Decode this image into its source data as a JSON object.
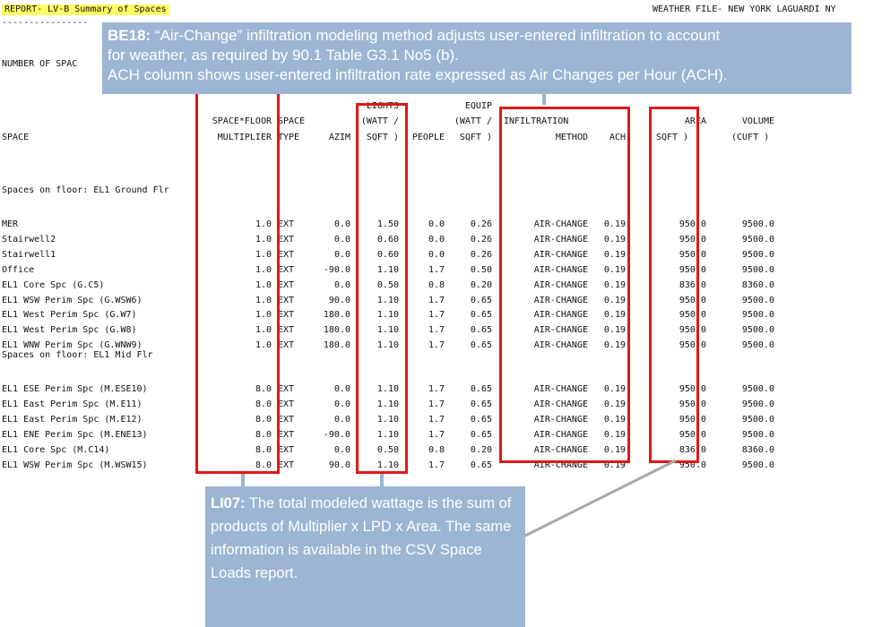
{
  "header": {
    "report_title": "REPORT- LV-B Summary of Spaces",
    "dashes": "----------------",
    "weather_file": "WEATHER FILE- NEW YORK LAGUARDI NY",
    "number_of_spaces_label": "NUMBER OF SPAC"
  },
  "columns": {
    "space": "SPACE",
    "mult_1": "SPACE*FLOOR",
    "mult_2": "MULTIPLIER",
    "type_1": "SPACE",
    "type_2": "TYPE",
    "azim": "AZIM",
    "lights_1": "LIGHTS",
    "lights_2": "(WATT /",
    "lights_3": "SQFT )",
    "people": "PEOPLE",
    "equip_1": "EQUIP",
    "equip_2": "(WATT /",
    "equip_3": "SQFT )",
    "infil_1": "INFILTRATION",
    "infil_2": "METHOD",
    "ach": "ACH",
    "area_1": "AREA",
    "area_2": "SQFT )",
    "volume_1": "VOLUME",
    "volume_2": "(CUFT )"
  },
  "floors": [
    {
      "label": "Spaces on floor: EL1 Ground Flr",
      "rows": [
        {
          "space": "MER",
          "mult": "1.0",
          "type": "EXT",
          "azim": "0.0",
          "lights": "1.50",
          "people": "0.0",
          "equip": "0.26",
          "method": "AIR-CHANGE",
          "ach": "0.19",
          "area": "950.0",
          "volume": "9500.0"
        },
        {
          "space": "Stairwell2",
          "mult": "1.0",
          "type": "EXT",
          "azim": "0.0",
          "lights": "0.60",
          "people": "0.0",
          "equip": "0.26",
          "method": "AIR-CHANGE",
          "ach": "0.19",
          "area": "950.0",
          "volume": "9500.0"
        },
        {
          "space": "Stairwell1",
          "mult": "1.0",
          "type": "EXT",
          "azim": "0.0",
          "lights": "0.60",
          "people": "0.0",
          "equip": "0.26",
          "method": "AIR-CHANGE",
          "ach": "0.19",
          "area": "950.0",
          "volume": "9500.0"
        },
        {
          "space": "Office",
          "mult": "1.0",
          "type": "EXT",
          "azim": "-90.0",
          "lights": "1.10",
          "people": "1.7",
          "equip": "0.50",
          "method": "AIR-CHANGE",
          "ach": "0.19",
          "area": "950.0",
          "volume": "9500.0"
        },
        {
          "space": "EL1 Core Spc (G.C5)",
          "mult": "1.0",
          "type": "EXT",
          "azim": "0.0",
          "lights": "0.50",
          "people": "0.8",
          "equip": "0.20",
          "method": "AIR-CHANGE",
          "ach": "0.19",
          "area": "836.0",
          "volume": "8360.0"
        },
        {
          "space": "EL1 WSW Perim Spc (G.WSW6)",
          "mult": "1.0",
          "type": "EXT",
          "azim": "90.0",
          "lights": "1.10",
          "people": "1.7",
          "equip": "0.65",
          "method": "AIR-CHANGE",
          "ach": "0.19",
          "area": "950.0",
          "volume": "9500.0"
        },
        {
          "space": "EL1 West Perim Spc (G.W7)",
          "mult": "1.0",
          "type": "EXT",
          "azim": "180.0",
          "lights": "1.10",
          "people": "1.7",
          "equip": "0.65",
          "method": "AIR-CHANGE",
          "ach": "0.19",
          "area": "950.0",
          "volume": "9500.0"
        },
        {
          "space": "EL1 West Perim Spc (G.W8)",
          "mult": "1.0",
          "type": "EXT",
          "azim": "180.0",
          "lights": "1.10",
          "people": "1.7",
          "equip": "0.65",
          "method": "AIR-CHANGE",
          "ach": "0.19",
          "area": "950.0",
          "volume": "9500.0"
        },
        {
          "space": "EL1 WNW Perim Spc (G.WNW9)",
          "mult": "1.0",
          "type": "EXT",
          "azim": "180.0",
          "lights": "1.10",
          "people": "1.7",
          "equip": "0.65",
          "method": "AIR-CHANGE",
          "ach": "0.19",
          "area": "950.0",
          "volume": "9500.0"
        }
      ]
    },
    {
      "label": "Spaces on floor: EL1 Mid Flr",
      "rows": [
        {
          "space": "EL1 ESE Perim Spc (M.ESE10)",
          "mult": "8.0",
          "type": "EXT",
          "azim": "0.0",
          "lights": "1.10",
          "people": "1.7",
          "equip": "0.65",
          "method": "AIR-CHANGE",
          "ach": "0.19",
          "area": "950.0",
          "volume": "9500.0"
        },
        {
          "space": "EL1 East Perim Spc (M.E11)",
          "mult": "8.0",
          "type": "EXT",
          "azim": "0.0",
          "lights": "1.10",
          "people": "1.7",
          "equip": "0.65",
          "method": "AIR-CHANGE",
          "ach": "0.19",
          "area": "950.0",
          "volume": "9500.0"
        },
        {
          "space": "EL1 East Perim Spc (M.E12)",
          "mult": "8.0",
          "type": "EXT",
          "azim": "0.0",
          "lights": "1.10",
          "people": "1.7",
          "equip": "0.65",
          "method": "AIR-CHANGE",
          "ach": "0.19",
          "area": "950.0",
          "volume": "9500.0"
        },
        {
          "space": "EL1 ENE Perim Spc (M.ENE13)",
          "mult": "8.0",
          "type": "EXT",
          "azim": "-90.0",
          "lights": "1.10",
          "people": "1.7",
          "equip": "0.65",
          "method": "AIR-CHANGE",
          "ach": "0.19",
          "area": "950.0",
          "volume": "9500.0"
        },
        {
          "space": "EL1 Core Spc (M.C14)",
          "mult": "8.0",
          "type": "EXT",
          "azim": "0.0",
          "lights": "0.50",
          "people": "0.8",
          "equip": "0.20",
          "method": "AIR-CHANGE",
          "ach": "0.19",
          "area": "836.0",
          "volume": "8360.0"
        },
        {
          "space": "EL1 WSW Perim Spc (M.WSW15)",
          "mult": "8.0",
          "type": "EXT",
          "azim": "90.0",
          "lights": "1.10",
          "people": "1.7",
          "equip": "0.65",
          "method": "AIR-CHANGE",
          "ach": "0.19",
          "area": "950.0",
          "volume": "9500.0"
        }
      ]
    }
  ],
  "callouts": {
    "top_code": "BE18:",
    "top_line1": " “Air-Change” infiltration modeling method adjusts user-entered infiltration to account",
    "top_line2": "for weather, as required by 90.1 Table G3.1 No5 (b).",
    "top_line3": "ACH column shows user-entered infiltration rate expressed as Air Changes per Hour (ACH).",
    "bottom_code": "LI07:",
    "bottom_text": " The total modeled wattage is the sum of products of Multiplier x LPD x Area. The same information is available in the CSV Space Loads report."
  },
  "colors": {
    "highlight": "#ffff66",
    "box_border": "#e01818",
    "callout_bg": "#9bb5d3",
    "callout_text": "#ffffff"
  }
}
